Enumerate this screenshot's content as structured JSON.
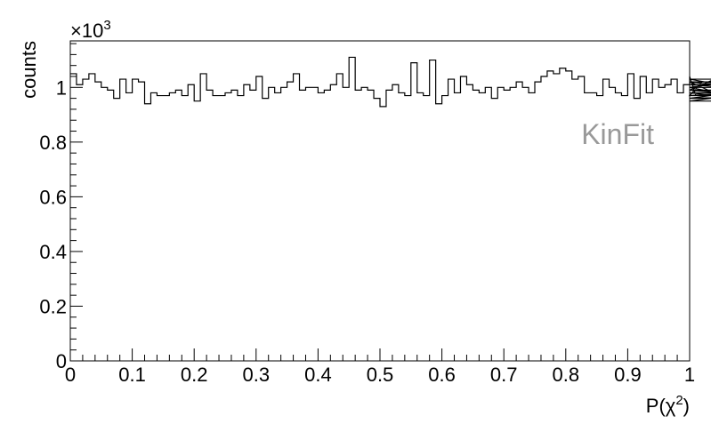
{
  "chart_data": {
    "type": "histogram",
    "xlabel_main": "P(χ",
    "xlabel_sup": "2",
    "xlabel_close": ")",
    "ylabel": "counts",
    "y_multiplier_base": "×10",
    "y_multiplier_exp": "3",
    "annotation": "KinFit",
    "xlim": [
      0,
      1
    ],
    "ylim": [
      0,
      1.17
    ],
    "x_ticks": [
      {
        "v": 0,
        "label": "0"
      },
      {
        "v": 0.1,
        "label": "0.1"
      },
      {
        "v": 0.2,
        "label": "0.2"
      },
      {
        "v": 0.3,
        "label": "0.3"
      },
      {
        "v": 0.4,
        "label": "0.4"
      },
      {
        "v": 0.5,
        "label": "0.5"
      },
      {
        "v": 0.6,
        "label": "0.6"
      },
      {
        "v": 0.7,
        "label": "0.7"
      },
      {
        "v": 0.8,
        "label": "0.8"
      },
      {
        "v": 0.9,
        "label": "0.9"
      },
      {
        "v": 1,
        "label": "1"
      }
    ],
    "y_ticks": [
      {
        "v": 0,
        "label": "0"
      },
      {
        "v": 0.2,
        "label": "0.2"
      },
      {
        "v": 0.4,
        "label": "0.4"
      },
      {
        "v": 0.6,
        "label": "0.6"
      },
      {
        "v": 0.8,
        "label": "0.8"
      },
      {
        "v": 1,
        "label": "1"
      }
    ],
    "bin_edges_start": 0,
    "bin_width": 0.01,
    "values": [
      1.05,
      1.01,
      1.03,
      1.05,
      1.02,
      1.0,
      0.99,
      0.96,
      1.03,
      0.98,
      1.03,
      1.02,
      0.94,
      0.98,
      0.97,
      0.97,
      0.98,
      0.99,
      0.97,
      1.01,
      0.95,
      1.05,
      0.99,
      0.97,
      0.97,
      0.98,
      0.99,
      0.97,
      1.01,
      0.99,
      1.04,
      0.96,
      1.0,
      0.98,
      1.0,
      1.02,
      1.05,
      0.99,
      1.0,
      1.0,
      0.98,
      0.99,
      1.01,
      1.05,
      1.0,
      1.11,
      0.99,
      1.0,
      0.99,
      0.96,
      0.93,
      0.99,
      1.01,
      0.98,
      0.97,
      1.09,
      0.98,
      0.97,
      1.1,
      0.94,
      0.97,
      1.03,
      0.98,
      1.04,
      1.01,
      0.99,
      0.98,
      1.0,
      0.96,
      1.0,
      0.99,
      1.0,
      1.02,
      1.0,
      0.98,
      1.02,
      1.04,
      1.06,
      1.05,
      1.07,
      1.06,
      1.03,
      1.04,
      0.98,
      0.98,
      0.97,
      1.03,
      1.0,
      0.98,
      0.97,
      1.05,
      0.96,
      1.04,
      0.98,
      1.03,
      1.0,
      1.01,
      1.03,
      0.98,
      1.01,
      1.04,
      0.97,
      1.02,
      0.99,
      1.03,
      1.01,
      1.0,
      1.02,
      1.0,
      0.96,
      0.99,
      0.97,
      0.98,
      0.95,
      0.99,
      0.96,
      0.97,
      1.0
    ]
  }
}
